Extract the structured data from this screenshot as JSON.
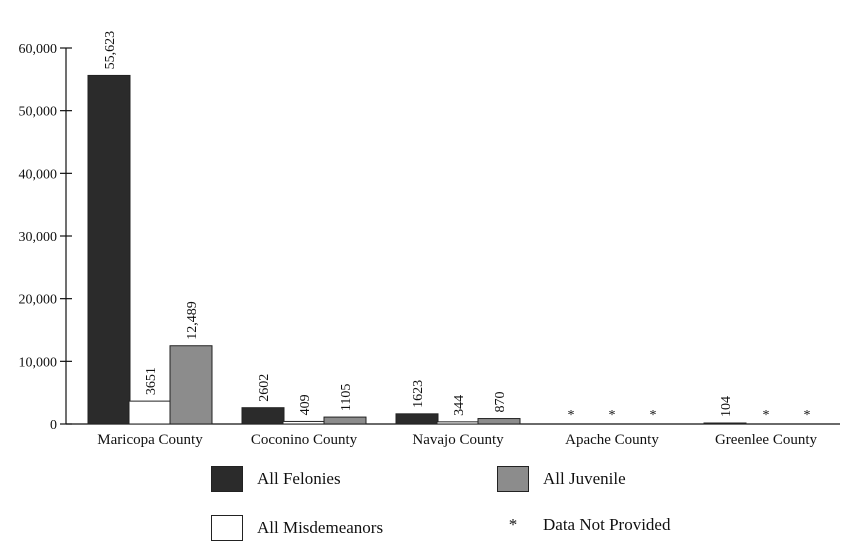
{
  "chart_data": {
    "type": "bar",
    "categories": [
      "Maricopa County",
      "Coconino County",
      "Navajo County",
      "Apache County",
      "Greenlee County"
    ],
    "series": [
      {
        "name": "All Felonies",
        "color": "#2b2b2b",
        "values": [
          55623,
          2602,
          1623,
          null,
          104
        ],
        "labels": [
          "55,623",
          "2602",
          "1623",
          "*",
          "104"
        ]
      },
      {
        "name": "All Misdemeanors",
        "color": "#ffffff",
        "values": [
          3651,
          409,
          344,
          null,
          null
        ],
        "labels": [
          "3651",
          "409",
          "344",
          "*",
          "*"
        ]
      },
      {
        "name": "All Juvenile",
        "color": "#8c8c8c",
        "values": [
          12489,
          1105,
          870,
          null,
          null
        ],
        "labels": [
          "12,489",
          "1105",
          "870",
          "*",
          "*"
        ]
      }
    ],
    "ylim": [
      0,
      60000
    ],
    "yticks": [
      0,
      10000,
      20000,
      30000,
      40000,
      50000,
      60000
    ],
    "ytick_labels": [
      "0",
      "10,000",
      "20,000",
      "30,000",
      "40,000",
      "50,000",
      "60,000"
    ],
    "missing_marker": "*",
    "missing_label": "Data Not Provided",
    "legend_position": "bottom"
  }
}
